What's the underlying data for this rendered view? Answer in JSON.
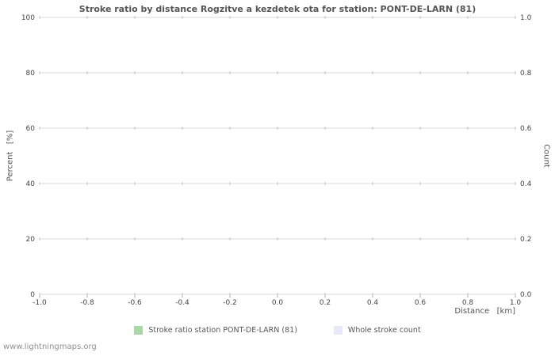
{
  "title": "Stroke ratio by distance Rogzitve a kezdetek ota for station: PONT-DE-LARN (81)",
  "watermark": "www.lightningmaps.org",
  "chart_data": {
    "type": "line",
    "series": [],
    "title": "Stroke ratio by distance Rogzitve a kezdetek ota for station: PONT-DE-LARN (81)",
    "xlabel": "Distance   [km]",
    "xlim": [
      -1.0,
      1.0
    ],
    "x_ticks": [
      -1.0,
      -0.8,
      -0.6,
      -0.4,
      -0.2,
      0.0,
      0.2,
      0.4,
      0.6,
      0.8,
      1.0
    ],
    "x_tick_labels": [
      "-1.0",
      "-0.8",
      "-0.6",
      "-0.4",
      "-0.2",
      "0.0",
      "0.2",
      "0.4",
      "0.6",
      "0.8",
      "1.0"
    ],
    "y_left": {
      "label": "Percent   [%]",
      "lim": [
        0,
        100
      ],
      "ticks": [
        0,
        20,
        40,
        60,
        80,
        100
      ],
      "tick_labels": [
        "0",
        "20",
        "40",
        "60",
        "80",
        "100"
      ]
    },
    "y_right": {
      "label": "Count",
      "lim": [
        0.0,
        1.0
      ],
      "tick_labels": [
        "0.0",
        "0.2",
        "0.4",
        "0.6",
        "0.8",
        "1.0"
      ]
    },
    "grid": true,
    "legend_position": "bottom-center",
    "legend": [
      {
        "label": "Stroke ratio station PONT-DE-LARN (81)",
        "color": "#a8d8a8"
      },
      {
        "label": "Whole stroke count",
        "color": "#e8e8f8"
      }
    ],
    "colors": {
      "gridline": "#d9d9d9",
      "tick_cross": "#c0c0c0",
      "axis_tick": "#999999"
    }
  }
}
